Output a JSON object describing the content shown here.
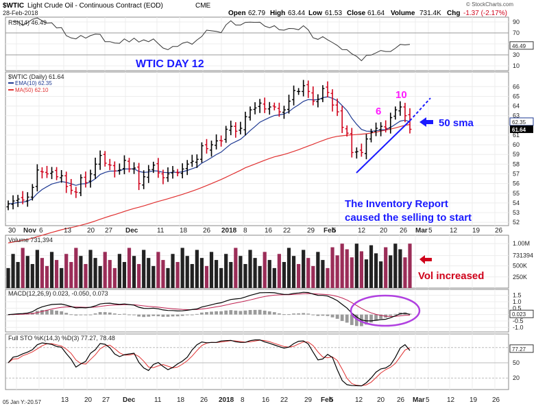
{
  "header": {
    "symbol": "$WTIC",
    "name": "Light Crude Oil - Continuous Contract (EOD)",
    "exchange": "CME",
    "date": "28-Feb-2018",
    "open_label": "Open",
    "open": "62.79",
    "high_label": "High",
    "high": "63.44",
    "low_label": "Low",
    "low": "61.53",
    "close_label": "Close",
    "close": "61.64",
    "volume_label": "Volume",
    "volume": "731.4K",
    "chg_label": "Chg",
    "chg": "-1.37 (-2.17%)",
    "watermark": "© StockCharts.com"
  },
  "footer_left": "05 Jan Y:-20.57",
  "panels": {
    "rsi": {
      "label": "RSI(14) 46.49",
      "scale": [
        "90",
        "70",
        "50",
        "30",
        "10"
      ],
      "last_tag": "46.49"
    },
    "price": {
      "label": "$WTIC (Daily) 61.64",
      "ema_label": "EMA(10) 62.35",
      "ma_label": "MA(50) 62.10",
      "scale": [
        "66",
        "65",
        "64",
        "63",
        "62",
        "61",
        "60",
        "59",
        "58",
        "57",
        "56",
        "55",
        "54",
        "53",
        "52"
      ],
      "ema_tag": "62.35",
      "close_tag": "61.64",
      "colors": {
        "up": "#000000",
        "down": "#d0021b",
        "ema": "#1f3a93",
        "ma": "#e03030",
        "trend": "#1a1aff"
      }
    },
    "volume": {
      "label": "Volume 731,394",
      "scale": [
        "1.00M",
        "731394",
        "500K",
        "250K"
      ]
    },
    "macd": {
      "label": "MACD(12,26,9) 0.023, -0.050, 0.073",
      "scale": [
        "1.5",
        "1.0",
        "0.5",
        "0.0",
        "-0.5",
        "-1.0"
      ],
      "last_tag": "0.023"
    },
    "sto": {
      "label": "Full STO %K(14,3) %D(3) 77.27, 78.48",
      "scale": [
        "80",
        "50",
        "20"
      ],
      "last_tag": "77.27"
    }
  },
  "xaxis": {
    "top": [
      "30",
      "Nov",
      "6",
      "13",
      "20",
      "27",
      "Dec",
      "11",
      "18",
      "26",
      "2018",
      "8",
      "16",
      "22",
      "29",
      "Feb",
      "5",
      "12",
      "20",
      "26",
      "Mar",
      "5",
      "12",
      "19",
      "26"
    ],
    "bottom": [
      "13",
      "20",
      "27",
      "Dec",
      "11",
      "18",
      "26",
      "2018",
      "8",
      "16",
      "22",
      "29",
      "Feb",
      "5",
      "12",
      "20",
      "26",
      "Mar",
      "5",
      "12",
      "19",
      "26"
    ]
  },
  "annotations": {
    "title": "WTIC DAY 12",
    "count_6": "6",
    "count_10": "10",
    "sma_note": "50 sma",
    "inventory_line1": "The Inventory Report",
    "inventory_line2": "caused the selling to start",
    "vol_note": "Vol increased"
  },
  "chart_data": {
    "type": "candlestick",
    "title": "$WTIC Light Crude Oil - Continuous Contract (EOD)",
    "x": [
      "Oct 27",
      "Oct 30",
      "Oct 31",
      "Nov 1",
      "Nov 2",
      "Nov 3",
      "Nov 6",
      "Nov 7",
      "Nov 8",
      "Nov 9",
      "Nov 10",
      "Nov 13",
      "Nov 14",
      "Nov 15",
      "Nov 16",
      "Nov 17",
      "Nov 20",
      "Nov 21",
      "Nov 22",
      "Nov 24",
      "Nov 27",
      "Nov 28",
      "Nov 29",
      "Nov 30",
      "Dec 1",
      "Dec 4",
      "Dec 5",
      "Dec 6",
      "Dec 7",
      "Dec 8",
      "Dec 11",
      "Dec 12",
      "Dec 13",
      "Dec 14",
      "Dec 15",
      "Dec 18",
      "Dec 19",
      "Dec 20",
      "Dec 21",
      "Dec 22",
      "Dec 26",
      "Dec 27",
      "Dec 28",
      "Dec 29",
      "Jan 2",
      "Jan 3",
      "Jan 4",
      "Jan 5",
      "Jan 8",
      "Jan 9",
      "Jan 10",
      "Jan 11",
      "Jan 12",
      "Jan 16",
      "Jan 17",
      "Jan 18",
      "Jan 19",
      "Jan 22",
      "Jan 23",
      "Jan 24",
      "Jan 25",
      "Jan 26",
      "Jan 29",
      "Jan 30",
      "Jan 31",
      "Feb 1",
      "Feb 2",
      "Feb 5",
      "Feb 6",
      "Feb 7",
      "Feb 8",
      "Feb 9",
      "Feb 12",
      "Feb 13",
      "Feb 14",
      "Feb 15",
      "Feb 16",
      "Feb 20",
      "Feb 21",
      "Feb 22",
      "Feb 23",
      "Feb 26",
      "Feb 27",
      "Feb 28"
    ],
    "close": [
      53.9,
      54.2,
      54.4,
      54.3,
      54.6,
      55.6,
      57.4,
      57.2,
      57.0,
      57.2,
      56.7,
      56.8,
      55.7,
      55.3,
      55.1,
      56.6,
      56.1,
      57.0,
      58.0,
      58.9,
      58.1,
      57.9,
      57.3,
      57.4,
      58.4,
      57.5,
      57.6,
      56.0,
      56.7,
      57.4,
      57.9,
      57.1,
      56.6,
      57.0,
      57.3,
      57.1,
      57.5,
      58.0,
      58.3,
      58.5,
      59.9,
      59.6,
      60.0,
      60.4,
      60.4,
      61.6,
      61.9,
      61.4,
      61.7,
      62.9,
      63.6,
      63.8,
      64.3,
      63.7,
      63.9,
      63.9,
      63.4,
      63.6,
      64.5,
      65.6,
      65.5,
      66.1,
      65.5,
      64.5,
      64.7,
      65.8,
      65.4,
      64.1,
      63.4,
      61.8,
      61.2,
      59.2,
      59.3,
      59.2,
      60.6,
      61.3,
      61.7,
      61.9,
      61.7,
      62.8,
      63.6,
      63.9,
      63.0,
      61.6
    ],
    "ema10_last": 62.35,
    "ma50_last": 62.1,
    "volume_last": 731394,
    "rsi_last": 46.49,
    "macd": {
      "macd": 0.023,
      "signal": -0.05,
      "hist": 0.073
    },
    "sto": {
      "k": 77.27,
      "d": 78.48
    },
    "ylim": [
      52,
      66.5
    ]
  }
}
